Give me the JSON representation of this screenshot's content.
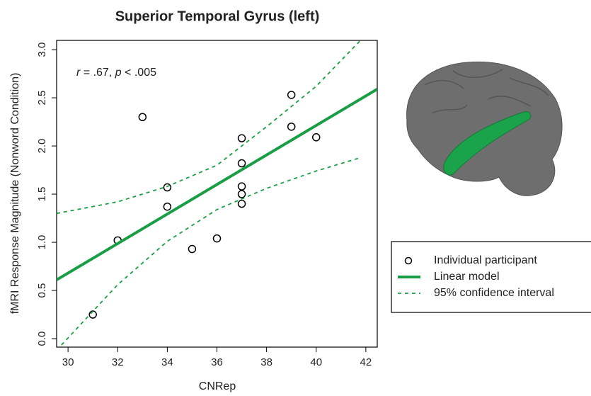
{
  "chart_data": {
    "type": "scatter",
    "title": "Superior Temporal Gyrus (left)",
    "x_label": "CNRep",
    "y_label": "fMRI Response Magnitude (Nonword Condition)",
    "annotation": [
      "r",
      " = .67, ",
      "p",
      " < .005"
    ],
    "xlim": [
      29.54,
      42.46
    ],
    "ylim": [
      -0.088,
      3.096
    ],
    "xticks": [
      30,
      32,
      34,
      36,
      38,
      40,
      42
    ],
    "yticks": [
      {
        "value": 0,
        "label": "0.0"
      },
      {
        "value": 0.5,
        "label": "0.5"
      },
      {
        "value": 1,
        "label": "1.0"
      },
      {
        "value": 1.5,
        "label": "1.5"
      },
      {
        "value": 2,
        "label": "2.0"
      },
      {
        "value": 2.5,
        "label": "2.5"
      },
      {
        "value": 3,
        "label": "3.0"
      }
    ],
    "series": [
      {
        "name": "Individual participant",
        "marker": "circle",
        "color": "#000000",
        "x": [
          31,
          32,
          33,
          34,
          34,
          35,
          36,
          37,
          37,
          37,
          37,
          37,
          39,
          39,
          40
        ],
        "values": [
          0.25,
          1.02,
          2.3,
          1.57,
          1.37,
          0.93,
          1.04,
          2.08,
          1.82,
          1.58,
          1.5,
          1.4,
          2.53,
          2.2,
          2.09
        ]
      },
      {
        "name": "Linear model",
        "marker": "solid",
        "color": "#1a9e45",
        "x": [
          29.54,
          42.46
        ],
        "values": [
          0.61,
          2.59
        ]
      },
      {
        "name": "95% confidence interval",
        "marker": "dashed",
        "color": "#1a9e45",
        "x": [
          29.54,
          32,
          34,
          36,
          38,
          40,
          41.8
        ],
        "upper": [
          1.3,
          1.42,
          1.58,
          1.8,
          2.2,
          2.62,
          3.1
        ],
        "lower": [
          -0.12,
          0.56,
          1.01,
          1.34,
          1.56,
          1.74,
          1.88
        ]
      }
    ]
  }
}
